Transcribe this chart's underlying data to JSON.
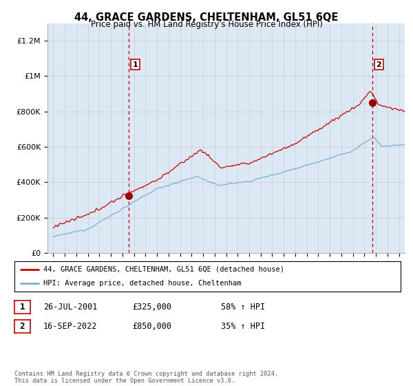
{
  "title": "44, GRACE GARDENS, CHELTENHAM, GL51 6QE",
  "subtitle": "Price paid vs. HM Land Registry's House Price Index (HPI)",
  "ylim": [
    0,
    1300000
  ],
  "yticks": [
    0,
    200000,
    400000,
    600000,
    800000,
    1000000,
    1200000
  ],
  "ytick_labels": [
    "£0",
    "£200K",
    "£400K",
    "£600K",
    "£800K",
    "£1M",
    "£1.2M"
  ],
  "sale1_date_num": 2001.57,
  "sale1_price": 325000,
  "sale1_label": "1",
  "sale2_date_num": 2022.71,
  "sale2_price": 850000,
  "sale2_label": "2",
  "red_line_color": "#cc0000",
  "blue_line_color": "#7aaed6",
  "sale_marker_color": "#990000",
  "dashed_line_color": "#cc0000",
  "grid_color": "#cccccc",
  "chart_bg_color": "#dce9f5",
  "background_color": "#ffffff",
  "legend_entry1": "44, GRACE GARDENS, CHELTENHAM, GL51 6QE (detached house)",
  "legend_entry2": "HPI: Average price, detached house, Cheltenham",
  "table_row1_num": "1",
  "table_row1_date": "26-JUL-2001",
  "table_row1_price": "£325,000",
  "table_row1_hpi": "58% ↑ HPI",
  "table_row2_num": "2",
  "table_row2_date": "16-SEP-2022",
  "table_row2_price": "£850,000",
  "table_row2_hpi": "35% ↑ HPI",
  "footer": "Contains HM Land Registry data © Crown copyright and database right 2024.\nThis data is licensed under the Open Government Licence v3.0.",
  "xmin": 1994.5,
  "xmax": 2025.5
}
